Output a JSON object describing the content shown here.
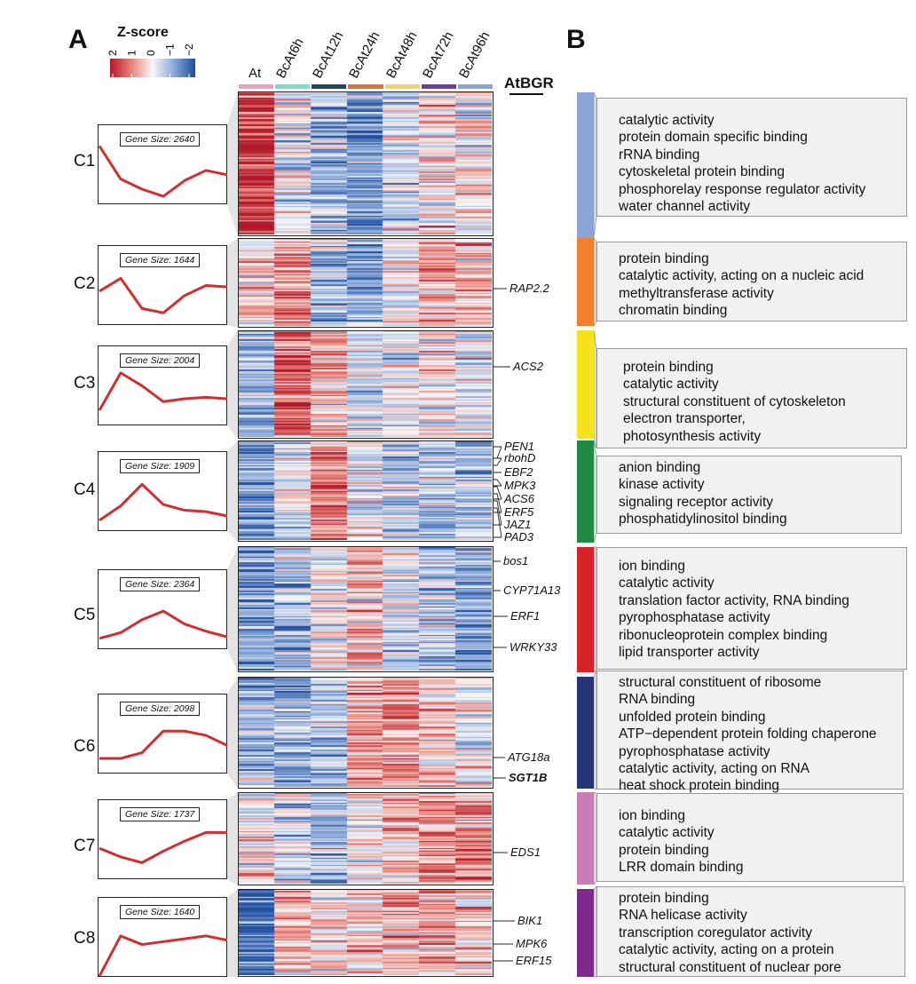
{
  "panels": {
    "a": "A",
    "b": "B"
  },
  "legend": {
    "title": "Z-score",
    "ticks": [
      "2",
      "1",
      "0",
      "−1",
      "−2"
    ],
    "colors": [
      "#b2182b",
      "#e8837a",
      "#f7f7f7",
      "#8aa8d8",
      "#1f4e9c"
    ]
  },
  "gene_list_title": "AtBGR",
  "chart_data": {
    "type": "heatmap",
    "columns": [
      {
        "name": "At",
        "color": "#f0a0b8"
      },
      {
        "name": "BcAt6h",
        "color": "#7fdccc"
      },
      {
        "name": "BcAt12h",
        "color": "#1e4a5e"
      },
      {
        "name": "BcAt24h",
        "color": "#e0703a"
      },
      {
        "name": "BcAt48h",
        "color": "#f0d070"
      },
      {
        "name": "BcAt72h",
        "color": "#6a3aaa"
      },
      {
        "name": "BcAt96h",
        "color": "#8aa4d8"
      }
    ],
    "clusters": [
      {
        "label": "C1",
        "gene_size": "Gene Size: 2640",
        "profile": [
          2.0,
          -0.3,
          -1.0,
          -1.5,
          -0.4,
          0.3,
          0.0
        ],
        "genes": [],
        "go_color": "#8aa4d4",
        "go_terms": [
          "catalytic activity",
          "protein domain specific binding",
          "rRNA binding",
          "cytoskeletal protein binding",
          "phosphorelay response regulator activity",
          "water channel activity"
        ]
      },
      {
        "label": "C2",
        "gene_size": "Gene Size: 1644",
        "profile": [
          0.3,
          1.2,
          -0.9,
          -1.2,
          0.0,
          0.7,
          0.6
        ],
        "genes": [
          {
            "name": "RAP2.2",
            "bold": false
          }
        ],
        "go_color": "#f07f2e",
        "go_terms": [
          "protein binding",
          "catalytic activity, acting on a nucleic acid",
          "methyltransferase activity",
          "chromatin binding"
        ]
      },
      {
        "label": "C3",
        "gene_size": "Gene Size: 2004",
        "profile": [
          -1.0,
          1.6,
          0.7,
          -0.4,
          -0.2,
          -0.1,
          -0.2
        ],
        "genes": [
          {
            "name": "ACS2",
            "bold": false
          }
        ],
        "go_color": "#f5e21a",
        "go_terms": [
          "protein binding",
          "catalytic activity",
          "structural constituent of cytoskeleton",
          "electron transporter,",
          "photosynthesis activity"
        ]
      },
      {
        "label": "C4",
        "gene_size": "Gene Size: 1909",
        "profile": [
          -1.3,
          -0.3,
          1.2,
          -0.2,
          -0.6,
          -0.7,
          -1.0
        ],
        "genes": [
          {
            "name": "PEN1",
            "bold": false
          },
          {
            "name": "rbohD",
            "bold": false
          },
          {
            "name": "EBF2",
            "bold": false
          },
          {
            "name": "MPK3",
            "bold": false
          },
          {
            "name": "ACS6",
            "bold": false
          },
          {
            "name": "ERF5",
            "bold": false
          },
          {
            "name": "JAZ1",
            "bold": false
          },
          {
            "name": "PAD3",
            "bold": false
          }
        ],
        "go_color": "#1f8a44",
        "go_terms": [
          "anion binding",
          "kinase activity",
          "signaling receptor activity",
          "phosphatidylinositol binding"
        ]
      },
      {
        "label": "C5",
        "gene_size": "Gene Size: 2364",
        "profile": [
          -1.3,
          -0.9,
          0.0,
          0.6,
          -0.3,
          -0.8,
          -1.2
        ],
        "genes": [
          {
            "name": "bos1",
            "bold": false
          },
          {
            "name": "CYP71A13",
            "bold": false
          },
          {
            "name": "ERF1",
            "bold": false
          },
          {
            "name": "WRKY33",
            "bold": false
          }
        ],
        "go_color": "#d92128",
        "go_terms": [
          "ion binding",
          "catalytic activity",
          "translation factor activity, RNA binding",
          "pyrophosphatase activity",
          "ribonucleoprotein complex binding",
          "lipid transporter activity"
        ]
      },
      {
        "label": "C6",
        "gene_size": "Gene Size: 2098",
        "profile": [
          -1.0,
          -1.0,
          -0.6,
          0.9,
          0.9,
          0.6,
          -0.1
        ],
        "genes": [
          {
            "name": "ATG18a",
            "bold": false
          },
          {
            "name": "SGT1B",
            "bold": true
          }
        ],
        "go_color": "#263575",
        "go_terms": [
          "structural constituent of ribosome",
          "RNA binding",
          "unfolded protein binding",
          "ATP−dependent protein folding chaperone",
          "pyrophosphatase activity",
          "catalytic activity, acting on RNA",
          "heat shock protein binding"
        ]
      },
      {
        "label": "C7",
        "gene_size": "Gene Size: 1737",
        "profile": [
          0.1,
          -0.5,
          -0.9,
          -0.1,
          0.6,
          1.2,
          1.2
        ],
        "genes": [
          {
            "name": "EDS1",
            "bold": false
          }
        ],
        "go_color": "#c87cb8",
        "go_terms": [
          "ion binding",
          "catalytic activity",
          "protein binding",
          "LRR domain binding"
        ]
      },
      {
        "label": "C8",
        "gene_size": "Gene Size: 1640",
        "profile": [
          -2.0,
          0.8,
          0.2,
          0.4,
          0.6,
          0.8,
          0.5
        ],
        "genes": [
          {
            "name": "BIK1",
            "bold": false
          },
          {
            "name": "MPK6",
            "bold": false
          },
          {
            "name": "ERF15",
            "bold": false
          }
        ],
        "go_color": "#7e2a8c",
        "go_terms": [
          "protein binding",
          "RNA helicase activity",
          "transcription coregulator activity",
          "catalytic activity, acting on a protein",
          "structural constituent of nuclear pore"
        ]
      }
    ]
  }
}
